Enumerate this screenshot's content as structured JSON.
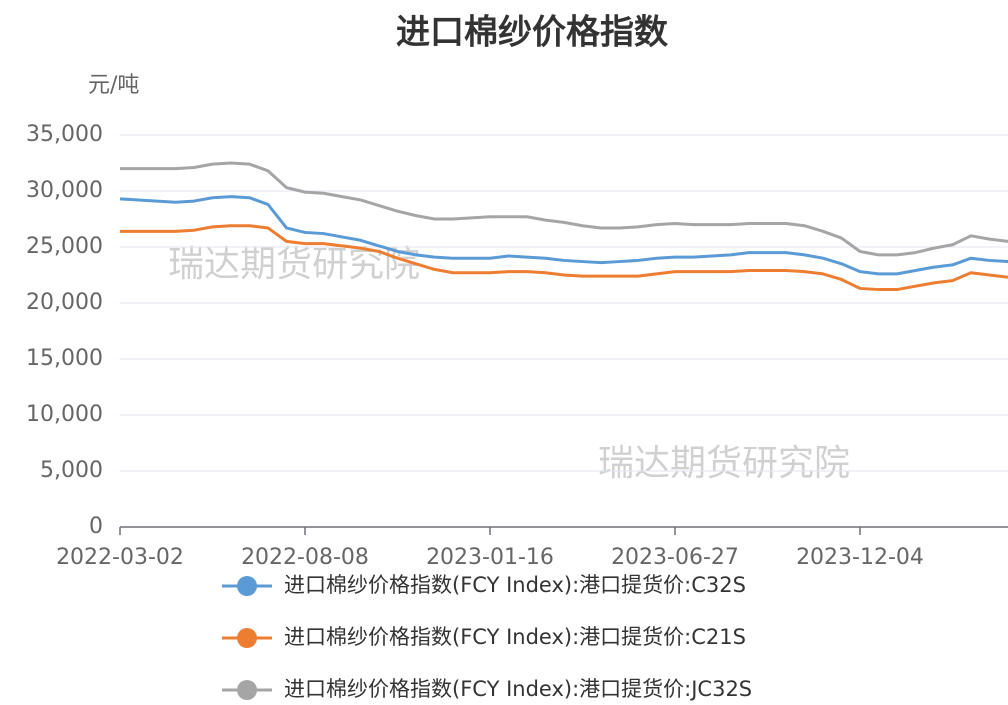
{
  "chart_data": {
    "type": "line",
    "title": "进口棉纱价格指数",
    "y_axis_label": "元/吨",
    "watermarks": [
      "瑞达期货研究院",
      "瑞达期货研究院"
    ],
    "categories": [
      "2022-03-02",
      null,
      null,
      null,
      null,
      null,
      null,
      null,
      null,
      null,
      "2022-08-08",
      null,
      null,
      null,
      null,
      null,
      null,
      null,
      null,
      null,
      "2023-01-16",
      null,
      null,
      null,
      null,
      null,
      null,
      null,
      null,
      null,
      "2023-06-27",
      null,
      null,
      null,
      null,
      null,
      null,
      null,
      null,
      null,
      "2023-12-04",
      null,
      null,
      null,
      null,
      null,
      null,
      null,
      null
    ],
    "ylim": [
      0,
      35000
    ],
    "yticks": [
      0,
      {
        "value": 5000,
        "label": "5,000"
      },
      {
        "value": 10000,
        "label": "10,000"
      },
      {
        "value": 15000,
        "label": "15,000"
      },
      {
        "value": 20000,
        "label": "20,000"
      },
      {
        "value": 25000,
        "label": "25,000"
      },
      {
        "value": 30000,
        "label": "30,000"
      },
      {
        "value": 35000,
        "label": "35,000"
      }
    ],
    "grid": true,
    "legend": "bottom",
    "series": [
      {
        "name": "进口棉纱价格指数(FCY Index):港口提货价:C32S",
        "color": "#5b9bd5",
        "values": [
          29300,
          29200,
          29100,
          29000,
          29100,
          29400,
          29500,
          29400,
          28800,
          26700,
          26300,
          26200,
          25900,
          25600,
          25100,
          24600,
          24300,
          24100,
          24000,
          24000,
          24000,
          24200,
          24100,
          24000,
          23800,
          23700,
          23600,
          23700,
          23800,
          24000,
          24100,
          24100,
          24200,
          24300,
          24500,
          24500,
          24500,
          24300,
          24000,
          23500,
          22800,
          22600,
          22600,
          22900,
          23200,
          23400,
          24000,
          23800,
          23700
        ]
      },
      {
        "name": "进口棉纱价格指数(FCY Index):港口提货价:C21S",
        "color": "#ed7d31",
        "values": [
          26400,
          26400,
          26400,
          26400,
          26500,
          26800,
          26900,
          26900,
          26700,
          25500,
          25300,
          25300,
          25100,
          24900,
          24600,
          24000,
          23500,
          23000,
          22700,
          22700,
          22700,
          22800,
          22800,
          22700,
          22500,
          22400,
          22400,
          22400,
          22400,
          22600,
          22800,
          22800,
          22800,
          22800,
          22900,
          22900,
          22900,
          22800,
          22600,
          22100,
          21300,
          21200,
          21200,
          21500,
          21800,
          22000,
          22700,
          22500,
          22300
        ]
      },
      {
        "name": "进口棉纱价格指数(FCY Index):港口提货价:JC32S",
        "color": "#a5a5a5",
        "values": [
          32000,
          32000,
          32000,
          32000,
          32100,
          32400,
          32500,
          32400,
          31800,
          30300,
          29900,
          29800,
          29500,
          29200,
          28700,
          28200,
          27800,
          27500,
          27500,
          27600,
          27700,
          27700,
          27700,
          27400,
          27200,
          26900,
          26700,
          26700,
          26800,
          27000,
          27100,
          27000,
          27000,
          27000,
          27100,
          27100,
          27100,
          26900,
          26400,
          25800,
          24600,
          24300,
          24300,
          24500,
          24900,
          25200,
          26000,
          25700,
          25500
        ]
      }
    ]
  }
}
